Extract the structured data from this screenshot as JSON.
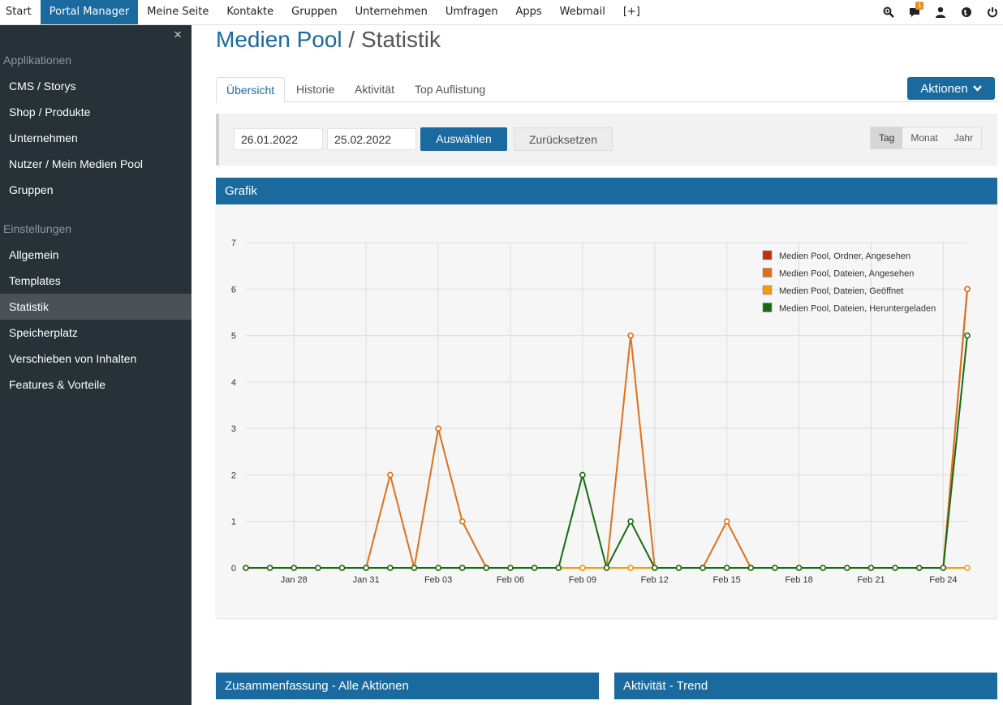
{
  "topnav": {
    "items": [
      "Start",
      "Portal Manager",
      "Meine Seite",
      "Kontakte",
      "Gruppen",
      "Unternehmen",
      "Umfragen",
      "Apps",
      "Webmail",
      "[+]"
    ],
    "active_index": 1,
    "notification_count": "1",
    "icons": [
      "search-zoom-icon",
      "chat-icon",
      "user-icon",
      "globe-icon",
      "power-icon"
    ]
  },
  "sidebar": {
    "close": "×",
    "section1": "Applikationen",
    "apps": [
      "CMS / Storys",
      "Shop / Produkte",
      "Unternehmen",
      "Nutzer / Mein Medien Pool",
      "Gruppen"
    ],
    "section2": "Einstellungen",
    "settings": [
      "Allgemein",
      "Templates",
      "Statistik",
      "Speicherplatz",
      "Verschieben von Inhalten",
      "Features & Vorteile"
    ],
    "active_setting": "Statistik"
  },
  "page": {
    "title_main": "Medien Pool",
    "title_sep": " / ",
    "title_sub": "Statistik"
  },
  "tabs": [
    "Übersicht",
    "Historie",
    "Aktivität",
    "Top Auflistung"
  ],
  "actions_button": "Aktionen",
  "filter": {
    "date_from": "26.01.2022",
    "date_to": "25.02.2022",
    "apply": "Auswählen",
    "reset": "Zurücksetzen",
    "periods": [
      "Tag",
      "Monat",
      "Jahr"
    ],
    "active_period": "Tag"
  },
  "panels": {
    "grafik": "Grafik",
    "summary": "Zusammenfassung - Alle Aktionen",
    "trend": "Aktivität - Trend"
  },
  "chart_data": {
    "type": "line",
    "x_start": "2022-01-26",
    "x_end": "2022-02-25",
    "x_ticks": [
      "Jan 28",
      "Jan 31",
      "Feb 03",
      "Feb 06",
      "Feb 09",
      "Feb 12",
      "Feb 15",
      "Feb 18",
      "Feb 21",
      "Feb 24"
    ],
    "ylim": [
      0,
      7
    ],
    "y_ticks": [
      0,
      1,
      2,
      3,
      4,
      5,
      6,
      7
    ],
    "grid": true,
    "legend_position": "top-right",
    "series": [
      {
        "name": "Medien Pool, Ordner, Angesehen",
        "color": "#c0300c",
        "values": [
          0,
          0,
          0,
          0,
          0,
          0,
          0,
          0,
          0,
          0,
          0,
          0,
          0,
          0,
          0,
          0,
          0,
          0,
          0,
          0,
          0,
          0,
          0,
          0,
          0,
          0,
          0,
          0,
          0,
          0,
          6
        ]
      },
      {
        "name": "Medien Pool, Dateien, Angesehen",
        "color": "#e0701b",
        "values": [
          0,
          0,
          0,
          0,
          0,
          0,
          2,
          0,
          3,
          1,
          0,
          0,
          0,
          0,
          0,
          0,
          5,
          0,
          0,
          0,
          1,
          0,
          0,
          0,
          0,
          0,
          0,
          0,
          0,
          0,
          6
        ]
      },
      {
        "name": "Medien Pool, Dateien, Geöffnet",
        "color": "#f39c12",
        "values": [
          0,
          0,
          0,
          0,
          0,
          0,
          0,
          0,
          0,
          0,
          0,
          0,
          0,
          0,
          0,
          0,
          0,
          0,
          0,
          0,
          0,
          0,
          0,
          0,
          0,
          0,
          0,
          0,
          0,
          0,
          0
        ]
      },
      {
        "name": "Medien Pool, Dateien, Heruntergeladen",
        "color": "#176b12",
        "values": [
          0,
          0,
          0,
          0,
          0,
          0,
          0,
          0,
          0,
          0,
          0,
          0,
          0,
          0,
          2,
          0,
          1,
          0,
          0,
          0,
          0,
          0,
          0,
          0,
          0,
          0,
          0,
          0,
          0,
          0,
          5
        ]
      }
    ]
  }
}
